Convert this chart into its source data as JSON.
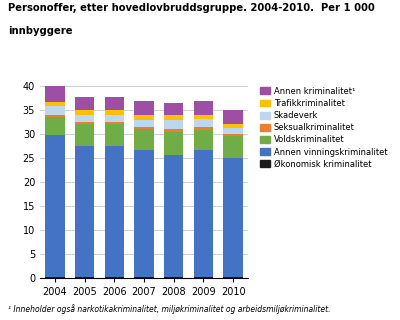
{
  "years": [
    "2004",
    "2005",
    "2006",
    "2007",
    "2008",
    "2009",
    "2010"
  ],
  "categories": [
    "Økonomisk kriminalitet",
    "Annen vinningskriminalitet",
    "Voldskriminalitet",
    "Seksualkriminalitet",
    "Skadeverk",
    "Trafikkriminalitet",
    "Annen kriminalitet¹"
  ],
  "colors": [
    "#1a1a1a",
    "#4472c4",
    "#70ad47",
    "#ed7d31",
    "#bdd7ee",
    "#ffc000",
    "#9e4fa5"
  ],
  "data": {
    "Økonomisk kriminalitet": [
      0.3,
      0.3,
      0.3,
      0.3,
      0.3,
      0.3,
      0.3
    ],
    "Annen vinningskriminalitet": [
      29.5,
      27.3,
      27.3,
      26.5,
      25.5,
      26.5,
      24.8
    ],
    "Voldskriminalitet": [
      3.8,
      4.5,
      4.5,
      4.3,
      4.8,
      4.2,
      4.5
    ],
    "Seksualkriminalitet": [
      0.5,
      0.5,
      0.5,
      0.5,
      0.5,
      0.5,
      0.5
    ],
    "Skadeverk": [
      1.8,
      1.5,
      1.5,
      1.5,
      1.8,
      1.7,
      1.3
    ],
    "Trafikkriminalitet": [
      0.9,
      1.0,
      1.0,
      1.0,
      1.2,
      0.8,
      0.8
    ],
    "Annen kriminalitet¹": [
      3.2,
      2.7,
      2.7,
      2.9,
      2.5,
      3.0,
      2.9
    ]
  },
  "title_line1": "Personoffer, etter hovedlovbruddsgruppe. 2004-2010.  Per 1 000",
  "title_line2": "innbyggere",
  "ylim": [
    0,
    40
  ],
  "yticks": [
    0,
    5,
    10,
    15,
    20,
    25,
    30,
    35,
    40
  ],
  "footnote": "¹ Inneholder også narkotikakriminalitet, miljøkriminalitet og arbeidsmiljøkriminalitet.",
  "background_color": "#ffffff",
  "grid_color": "#d0d0d0"
}
